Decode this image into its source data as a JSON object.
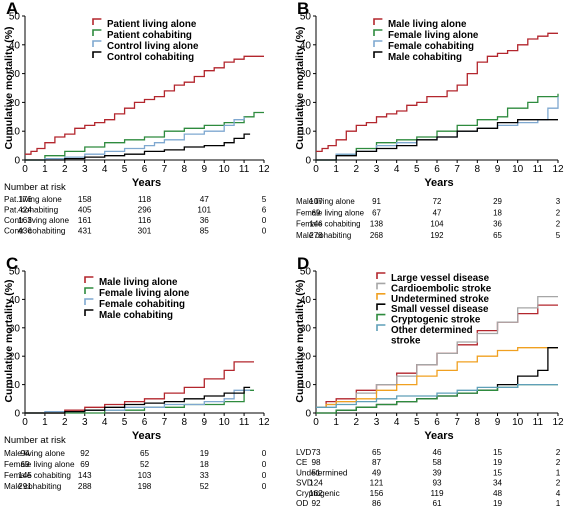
{
  "colors": {
    "dark_red": "#b3262d",
    "green": "#2e8b3e",
    "light_blue": "#7fa8d0",
    "black": "#000000",
    "gray": "#a6a6a6",
    "orange": "#f0a020",
    "teal": "#5f9fb8"
  },
  "chart_data": [
    {
      "type": "line",
      "panel_letter": "A",
      "ylabel": "Cumulative mortality (%)",
      "xlabel": "Years",
      "xlim": [
        0,
        12
      ],
      "ylim": [
        0,
        50
      ],
      "x_ticks": [
        "0",
        "1",
        "2",
        "3",
        "4",
        "5",
        "6",
        "7",
        "8",
        "9",
        "10",
        "11",
        "12"
      ],
      "y_ticks": [
        "0",
        "10",
        "20",
        "30",
        "40",
        "50"
      ],
      "legend_position": "top-left",
      "series": [
        {
          "name": "Patient living alone",
          "color": "#b3262d",
          "x": [
            0,
            0.3,
            0.6,
            1,
            1.5,
            2,
            2.5,
            3,
            3.5,
            4,
            4.5,
            5,
            5.5,
            6,
            6.5,
            7,
            7.5,
            8,
            8.5,
            9,
            9.5,
            10,
            10.5,
            11,
            11.5,
            12
          ],
          "y": [
            2,
            3,
            4,
            6,
            8,
            9,
            11,
            12,
            13,
            14,
            16,
            18,
            20,
            21,
            22,
            24,
            26,
            27,
            29,
            31,
            32,
            34,
            35,
            36,
            36,
            36
          ]
        },
        {
          "name": "Patient cohabiting",
          "color": "#2e8b3e",
          "x": [
            0,
            1,
            2,
            3,
            4,
            5,
            6,
            7,
            8,
            9,
            10,
            11,
            11.5,
            12
          ],
          "y": [
            0,
            1.5,
            3,
            4.5,
            6,
            7,
            8,
            10,
            11,
            12,
            13,
            15,
            16.5,
            16.5
          ]
        },
        {
          "name": "Control living alone",
          "color": "#7fa8d0",
          "x": [
            0,
            1,
            2,
            3,
            4,
            5,
            6,
            6.5,
            7,
            8,
            9,
            10,
            10.5,
            11
          ],
          "y": [
            0,
            0.5,
            1,
            2,
            3,
            4,
            5,
            6,
            7,
            9,
            10,
            12,
            14,
            15
          ]
        },
        {
          "name": "Control cohabiting",
          "color": "#000000",
          "x": [
            0,
            2,
            3,
            4,
            5,
            6,
            7,
            8,
            9,
            10,
            10.5,
            11,
            11.3
          ],
          "y": [
            0,
            0.5,
            1,
            1.5,
            2,
            3,
            3.5,
            4.5,
            5,
            6,
            7.5,
            9,
            9
          ]
        }
      ],
      "risk_table": {
        "title": "Number at risk",
        "time_points": [
          0,
          3,
          6,
          9,
          12
        ],
        "rows": [
          {
            "label": "Pat. living alone",
            "values": [
              "176",
              "158",
              "118",
              "47",
              "5"
            ]
          },
          {
            "label": "Pat. cohabiting",
            "values": [
              "424",
              "405",
              "296",
              "101",
              "6"
            ]
          },
          {
            "label": "Contr. living alone",
            "values": [
              "163",
              "161",
              "116",
              "36",
              "0"
            ]
          },
          {
            "label": "Contr. cohabiting",
            "values": [
              "436",
              "431",
              "301",
              "85",
              "0"
            ]
          }
        ]
      }
    },
    {
      "type": "line",
      "panel_letter": "B",
      "ylabel": "Cumulative mortality (%)",
      "xlabel": "Years",
      "xlim": [
        0,
        12
      ],
      "ylim": [
        0,
        50
      ],
      "x_ticks": [
        "0",
        "1",
        "2",
        "3",
        "4",
        "5",
        "6",
        "7",
        "8",
        "9",
        "10",
        "11",
        "12"
      ],
      "y_ticks": [
        "0",
        "10",
        "20",
        "30",
        "40",
        "50"
      ],
      "legend_position": "top-left",
      "series": [
        {
          "name": "Male living alone",
          "color": "#b3262d",
          "x": [
            0,
            0.3,
            0.6,
            1,
            1.5,
            2,
            2.5,
            3,
            3.5,
            4,
            4.5,
            5,
            5.5,
            6,
            6.5,
            7,
            7.5,
            8,
            8.5,
            9,
            9.5,
            10,
            10.5,
            11,
            11.5,
            12
          ],
          "y": [
            3,
            4,
            5,
            7,
            10,
            12,
            13,
            15,
            16,
            17,
            19,
            20,
            22,
            22,
            24,
            26,
            30,
            34,
            36,
            37,
            38,
            40,
            42,
            43,
            44,
            44
          ]
        },
        {
          "name": "Female living alone",
          "color": "#2e8b3e",
          "x": [
            0,
            1,
            2,
            3,
            4,
            5,
            6,
            7,
            8,
            9,
            9.5,
            10,
            10.5,
            11,
            12
          ],
          "y": [
            0,
            2,
            4,
            6,
            7,
            8,
            10,
            12,
            14,
            15,
            18,
            18,
            20,
            22,
            23
          ]
        },
        {
          "name": "Female cohabiting",
          "color": "#7fa8d0",
          "x": [
            0,
            1,
            2,
            3,
            4,
            5,
            6,
            7,
            8,
            9,
            10,
            11,
            11.5,
            12
          ],
          "y": [
            0,
            2,
            3,
            5,
            6,
            7,
            8,
            10,
            11,
            12,
            13,
            14,
            18,
            22
          ]
        },
        {
          "name": "Male cohabiting",
          "color": "#000000",
          "x": [
            0,
            1,
            2,
            3,
            4,
            5,
            6,
            7,
            8,
            9,
            10,
            11,
            12
          ],
          "y": [
            0,
            1.5,
            3,
            4,
            5,
            7,
            8,
            10,
            11,
            13,
            14,
            14,
            14
          ]
        }
      ],
      "risk_table": {
        "time_points": [
          0,
          3,
          6,
          9,
          12
        ],
        "rows": [
          {
            "label": "Male living alone",
            "values": [
              "107",
              "91",
              "72",
              "29",
              "3"
            ]
          },
          {
            "label": "Female living alone",
            "values": [
              "69",
              "67",
              "47",
              "18",
              "2"
            ]
          },
          {
            "label": "Female cohabiting",
            "values": [
              "146",
              "138",
              "104",
              "36",
              "2"
            ]
          },
          {
            "label": "Male cohabiting",
            "values": [
              "278",
              "268",
              "192",
              "65",
              "5"
            ]
          }
        ]
      }
    },
    {
      "type": "line",
      "panel_letter": "C",
      "ylabel": "Cumulative mortality (%)",
      "xlabel": "Years",
      "xlim": [
        0,
        12
      ],
      "ylim": [
        0,
        50
      ],
      "x_ticks": [
        "0",
        "1",
        "2",
        "3",
        "4",
        "5",
        "6",
        "7",
        "8",
        "9",
        "10",
        "11",
        "12"
      ],
      "y_ticks": [
        "0",
        "10",
        "20",
        "30",
        "40",
        "50"
      ],
      "legend_position": "top-left",
      "series": [
        {
          "name": "Male living alone",
          "color": "#b3262d",
          "x": [
            0,
            2,
            3,
            4,
            5,
            6,
            7,
            8,
            9,
            10,
            10.5,
            11.5
          ],
          "y": [
            0,
            1,
            2,
            3,
            4,
            5,
            7,
            9,
            12,
            15,
            18,
            18
          ]
        },
        {
          "name": "Female living alone",
          "color": "#2e8b3e",
          "x": [
            0,
            2,
            4,
            6,
            8,
            10,
            11,
            11.5
          ],
          "y": [
            0,
            0,
            1,
            2,
            3,
            4,
            8,
            8
          ]
        },
        {
          "name": "Female cohabiting",
          "color": "#7fa8d0",
          "x": [
            0,
            1,
            3,
            5,
            7,
            9,
            10,
            10.5,
            11.3
          ],
          "y": [
            0,
            0.5,
            1,
            2,
            3,
            4,
            5,
            8,
            8
          ]
        },
        {
          "name": "Male cohabiting",
          "color": "#000000",
          "x": [
            0,
            2,
            3,
            4,
            5,
            6,
            7,
            8,
            9,
            10,
            11,
            11.3
          ],
          "y": [
            0,
            0.5,
            1,
            2,
            3,
            3.5,
            4,
            5,
            6,
            7,
            9,
            9
          ]
        }
      ],
      "risk_table": {
        "title": "Number at risk",
        "time_points": [
          0,
          3,
          6,
          9,
          12
        ],
        "rows": [
          {
            "label": "Male living alone",
            "values": [
              "94",
              "92",
              "65",
              "19",
              "0"
            ]
          },
          {
            "label": "Female living alone",
            "values": [
              "69",
              "69",
              "52",
              "18",
              "0"
            ]
          },
          {
            "label": "Female cohabiting",
            "values": [
              "145",
              "143",
              "103",
              "33",
              "0"
            ]
          },
          {
            "label": "Male cohabiting",
            "values": [
              "291",
              "288",
              "198",
              "52",
              "0"
            ]
          }
        ]
      }
    },
    {
      "type": "line",
      "panel_letter": "D",
      "ylabel": "Cumulative mortality (%)",
      "xlabel": "Years",
      "xlim": [
        0,
        12
      ],
      "ylim": [
        0,
        50
      ],
      "x_ticks": [
        "0",
        "1",
        "2",
        "3",
        "4",
        "5",
        "6",
        "7",
        "8",
        "9",
        "10",
        "11",
        "12"
      ],
      "y_ticks": [
        "0",
        "10",
        "20",
        "30",
        "40",
        "50"
      ],
      "legend_position": "top-left",
      "series": [
        {
          "name": "Large vessel disease",
          "color": "#b3262d",
          "x": [
            0,
            0.5,
            1,
            2,
            3,
            4,
            5,
            6,
            7,
            8,
            9,
            10,
            11,
            12
          ],
          "y": [
            2,
            4,
            5,
            8,
            10,
            14,
            17,
            21,
            24,
            29,
            32,
            35,
            38,
            38
          ]
        },
        {
          "name": "Cardioembolic stroke",
          "color": "#a6a6a6",
          "x": [
            0,
            0.5,
            1,
            2,
            3,
            4,
            5,
            6,
            7,
            8,
            9,
            10,
            11,
            12
          ],
          "y": [
            2,
            3,
            4,
            7,
            10,
            13,
            17,
            21,
            25,
            28,
            32,
            37,
            41,
            41
          ]
        },
        {
          "name": "Undetermined stroke",
          "color": "#f0a020",
          "x": [
            0,
            0.5,
            1,
            2,
            3,
            4,
            5,
            6,
            7,
            8,
            9,
            10,
            11,
            12
          ],
          "y": [
            2,
            3,
            4,
            5,
            8,
            10,
            13,
            15,
            18,
            20,
            22,
            23,
            23,
            23
          ]
        },
        {
          "name": "Small vessel disease",
          "color": "#000000",
          "x": [
            0,
            1,
            2,
            3,
            4,
            5,
            6,
            7,
            8,
            9,
            10,
            11,
            11.5,
            12
          ],
          "y": [
            0,
            1,
            2,
            3,
            4,
            5,
            6,
            7,
            8,
            10,
            13,
            15,
            23,
            23
          ]
        },
        {
          "name": "Cryptogenic stroke",
          "color": "#2e8b3e",
          "x": [
            0,
            1,
            2,
            3,
            4,
            5,
            6,
            7,
            8,
            9,
            10,
            12
          ],
          "y": [
            0,
            1,
            2,
            3,
            4,
            5,
            6,
            7,
            8,
            9,
            10,
            10
          ]
        },
        {
          "name": "Other determined stroke",
          "legend_lines": [
            "Other determined",
            "stroke"
          ],
          "color": "#5f9fb8",
          "x": [
            0,
            1,
            2,
            3,
            4,
            5,
            6,
            7,
            8,
            9,
            10,
            12
          ],
          "y": [
            2,
            3,
            4,
            5,
            6,
            6,
            7,
            8,
            9,
            9,
            10,
            10
          ]
        }
      ],
      "risk_table": {
        "time_points": [
          0,
          3,
          6,
          9,
          12
        ],
        "rows": [
          {
            "label": "LVD",
            "values": [
              "73",
              "65",
              "46",
              "15",
              "2"
            ]
          },
          {
            "label": "CE",
            "values": [
              "98",
              "87",
              "58",
              "19",
              "2"
            ]
          },
          {
            "label": "Undetermined",
            "values": [
              "51",
              "49",
              "39",
              "15",
              "1"
            ]
          },
          {
            "label": "SVD",
            "values": [
              "124",
              "121",
              "93",
              "34",
              "2"
            ]
          },
          {
            "label": "Cryptogenic",
            "values": [
              "162",
              "156",
              "119",
              "48",
              "4"
            ]
          },
          {
            "label": "OD",
            "values": [
              "92",
              "86",
              "61",
              "19",
              "1"
            ]
          }
        ]
      }
    }
  ]
}
